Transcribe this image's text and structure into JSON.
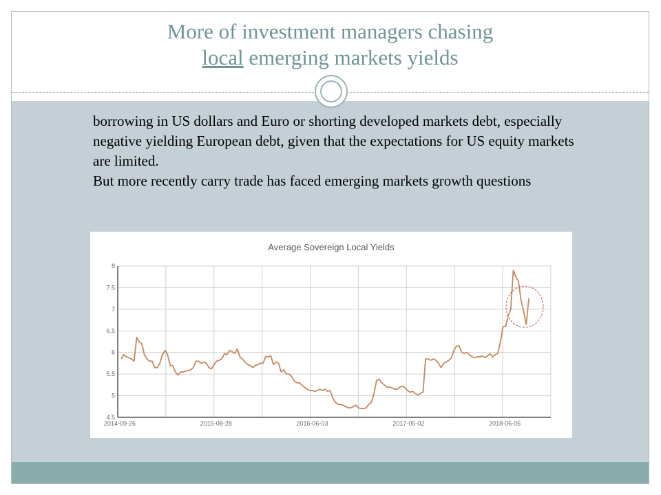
{
  "slide": {
    "title_line1": "More of investment managers chasing",
    "title_local": "local",
    "title_rest": " emerging markets yields",
    "paragraph1": "borrowing in US dollars and Euro or shorting developed markets debt, especially negative yielding European debt, given that the expectations for US equity  markets  are limited.",
    "paragraph2": "But more recently carry trade has faced emerging markets growth questions"
  },
  "colors": {
    "accent": "#6f9595",
    "band": "#c5d0d6",
    "footer": "#8aacac",
    "line": "#c8875a",
    "highlight_circle": "#c0504d"
  },
  "chart_data": {
    "type": "line",
    "title": "Average Sovereign Local Yields",
    "ylim": [
      4.5,
      8
    ],
    "yticks": [
      "4.5",
      "5",
      "5.5",
      "6",
      "6.5",
      "7",
      "7.5",
      "8"
    ],
    "xtick_labels": [
      "2014-09-26",
      "2015-08-28",
      "2016-06-03",
      "2017-05-02",
      "2018-06-06"
    ],
    "grid": true,
    "series": [
      {
        "values": [
          5.85,
          5.95,
          5.9,
          5.88,
          5.85,
          5.8,
          6.35,
          6.25,
          6.2,
          5.95,
          5.85,
          5.8,
          5.8,
          5.65,
          5.65,
          5.75,
          5.95,
          6.05,
          5.95,
          5.7,
          5.7,
          5.55,
          5.48,
          5.55,
          5.55,
          5.57,
          5.58,
          5.6,
          5.65,
          5.8,
          5.8,
          5.75,
          5.78,
          5.75,
          5.65,
          5.62,
          5.72,
          5.8,
          5.82,
          5.85,
          5.97,
          5.95,
          6.05,
          6.02,
          5.98,
          6.08,
          5.9,
          5.85,
          5.78,
          5.72,
          5.7,
          5.65,
          5.7,
          5.72,
          5.75,
          5.75,
          5.9,
          5.9,
          5.92,
          5.72,
          5.78,
          5.75,
          5.55,
          5.6,
          5.5,
          5.5,
          5.45,
          5.35,
          5.3,
          5.3,
          5.25,
          5.2,
          5.15,
          5.12,
          5.12,
          5.1,
          5.12,
          5.15,
          5.12,
          5.15,
          5.1,
          5.12,
          4.95,
          4.85,
          4.8,
          4.8,
          4.78,
          4.75,
          4.72,
          4.72,
          4.75,
          4.78,
          4.72,
          4.7,
          4.7,
          4.72,
          4.8,
          4.85,
          5.05,
          5.35,
          5.38,
          5.3,
          5.25,
          5.2,
          5.2,
          5.18,
          5.15,
          5.15,
          5.2,
          5.22,
          5.18,
          5.12,
          5.08,
          5.1,
          5.05,
          5.02,
          5.05,
          5.08,
          5.85,
          5.85,
          5.82,
          5.85,
          5.82,
          5.75,
          5.65,
          5.75,
          5.78,
          5.82,
          5.88,
          6.05,
          6.15,
          6.15,
          6.0,
          5.98,
          6.0,
          5.95,
          5.9,
          5.88,
          5.9,
          5.9,
          5.92,
          5.88,
          5.92,
          5.97,
          5.9,
          5.95,
          5.98,
          6.25,
          6.6,
          6.6,
          6.85,
          7.0,
          7.9,
          7.75,
          7.65,
          7.2,
          6.95,
          6.65,
          7.25
        ]
      }
    ],
    "annotation": "dashed circle around latest values"
  }
}
